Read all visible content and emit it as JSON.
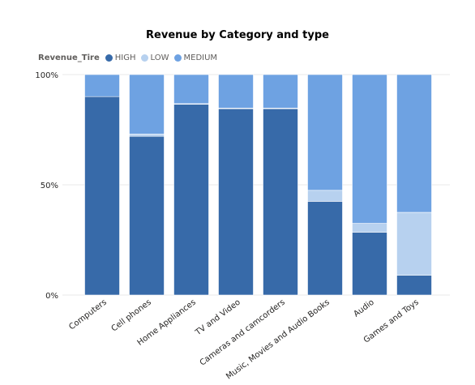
{
  "chart_data": {
    "type": "bar",
    "stacked": "percent",
    "title": "Revenue by Category and type",
    "legend": {
      "title": "Revenue_Tire",
      "placement": "top-left"
    },
    "categories": [
      "Computers",
      "Cell phones",
      "Home Appliances",
      "TV and Video",
      "Cameras and camcorders",
      "Music, Movies and Audio Books",
      "Audio",
      "Games and Toys"
    ],
    "series": [
      {
        "name": "HIGH",
        "color": "#376AA9",
        "values": [
          90,
          72,
          86.5,
          84.5,
          84.5,
          42.5,
          28.5,
          9
        ]
      },
      {
        "name": "LOW",
        "color": "#B7D1EF",
        "values": [
          0,
          1,
          0.3,
          0.3,
          0.3,
          5,
          4,
          28.5
        ]
      },
      {
        "name": "MEDIUM",
        "color": "#6EA2E2",
        "values": [
          10,
          27,
          13.2,
          15.2,
          15.2,
          52.5,
          67.5,
          62.5
        ]
      }
    ],
    "ylim": [
      0,
      100
    ],
    "yticks": [
      "0%",
      "50%",
      "100%"
    ],
    "grid": true,
    "xlabel": "",
    "ylabel": ""
  }
}
